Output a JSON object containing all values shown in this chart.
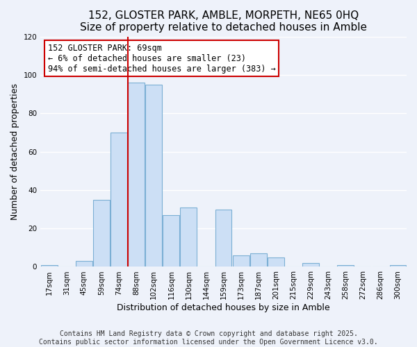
{
  "title1": "152, GLOSTER PARK, AMBLE, MORPETH, NE65 0HQ",
  "title2": "Size of property relative to detached houses in Amble",
  "xlabel": "Distribution of detached houses by size in Amble",
  "ylabel": "Number of detached properties",
  "bin_labels": [
    "17sqm",
    "31sqm",
    "45sqm",
    "59sqm",
    "74sqm",
    "88sqm",
    "102sqm",
    "116sqm",
    "130sqm",
    "144sqm",
    "159sqm",
    "173sqm",
    "187sqm",
    "201sqm",
    "215sqm",
    "229sqm",
    "243sqm",
    "258sqm",
    "272sqm",
    "286sqm",
    "300sqm"
  ],
  "bar_heights": [
    1,
    0,
    3,
    35,
    70,
    96,
    95,
    27,
    31,
    0,
    30,
    6,
    7,
    5,
    0,
    2,
    0,
    1,
    0,
    0,
    1
  ],
  "bar_color": "#ccdff5",
  "bar_edge_color": "#7bafd4",
  "vline_x": 4.5,
  "vline_color": "#cc0000",
  "annotation_title": "152 GLOSTER PARK: 69sqm",
  "annotation_line1": "← 6% of detached houses are smaller (23)",
  "annotation_line2": "94% of semi-detached houses are larger (383) →",
  "annotation_box_edge": "#cc0000",
  "ylim": [
    0,
    120
  ],
  "yticks": [
    0,
    20,
    40,
    60,
    80,
    100,
    120
  ],
  "footer1": "Contains HM Land Registry data © Crown copyright and database right 2025.",
  "footer2": "Contains public sector information licensed under the Open Government Licence v3.0.",
  "background_color": "#eef2fa",
  "plot_background": "#eef2fa",
  "grid_color": "#ffffff",
  "title_fontsize": 11,
  "subtitle_fontsize": 10,
  "label_fontsize": 9,
  "tick_fontsize": 7.5,
  "footer_fontsize": 7,
  "annot_fontsize": 8.5
}
